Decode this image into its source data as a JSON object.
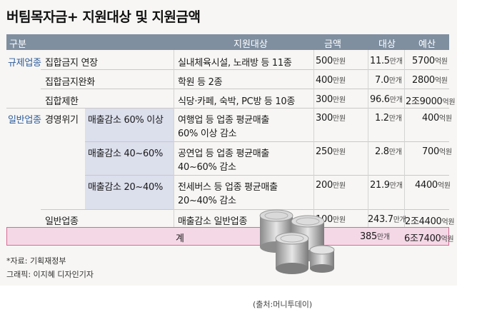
{
  "title": "버팀목자금+ 지원대상 및 지원금액",
  "header": {
    "category": "구분",
    "target": "지원대상",
    "amount": "금액",
    "count": "대상",
    "budget": "예산"
  },
  "groups": {
    "regulated": "규제업종",
    "general": "일반업종"
  },
  "rows": [
    {
      "sub": "집합금지 연장",
      "target": "실내체육시설, 노래방 등 11종",
      "amount": "500",
      "amount_unit": "만원",
      "count": "11.5",
      "count_unit": "만개",
      "budget": "5700",
      "budget_unit": "억원"
    },
    {
      "sub": "집합금지완화",
      "target": "학원 등 2종",
      "amount": "400",
      "amount_unit": "만원",
      "count": "7.0",
      "count_unit": "만개",
      "budget": "2800",
      "budget_unit": "억원"
    },
    {
      "sub": "집합제한",
      "target": "식당·카페, 숙박, PC방 등 10종",
      "amount": "300",
      "amount_unit": "만원",
      "count": "96.6",
      "count_unit": "만개",
      "budget": "2조9000",
      "budget_unit": "억원"
    },
    {
      "sub": "경영위기",
      "level": "매출감소 60% 이상",
      "target1": "여행업 등 업종 평균매출",
      "target2": "60% 이상 감소",
      "amount": "300",
      "amount_unit": "만원",
      "count": "1.2",
      "count_unit": "만개",
      "budget": "400",
      "budget_unit": "억원"
    },
    {
      "level": "매출감소 40~60%",
      "target1": "공연업 등 업종 평균매출",
      "target2": "40~60% 감소",
      "amount": "250",
      "amount_unit": "만원",
      "count": "2.8",
      "count_unit": "만개",
      "budget": "700",
      "budget_unit": "억원"
    },
    {
      "level": "매출감소 20~40%",
      "target1": "전세버스 등 업종 평균매출",
      "target2": "20~40% 감소",
      "amount": "200",
      "amount_unit": "만원",
      "count": "21.9",
      "count_unit": "만개",
      "budget": "4400",
      "budget_unit": "억원"
    },
    {
      "sub": "일반업종",
      "target": "매출감소 일반업종",
      "amount": "100",
      "amount_unit": "만원",
      "count": "243.7",
      "count_unit": "만개",
      "budget": "2조4400",
      "budget_unit": "억원"
    }
  ],
  "total": {
    "label": "계",
    "count": "385",
    "count_unit": "만개",
    "budget": "6조7400",
    "budget_unit": "억원"
  },
  "footer": {
    "source": "*자료: 기획재정부",
    "graphic": "그래픽: 이지혜 디자인기자"
  },
  "credit": "(출처:머니투데이)",
  "colors": {
    "header_bg": "#7f8fa0",
    "group_text": "#2f5d9c",
    "highlight": "#dcdfec",
    "total_bg": "#f4d8e6",
    "total_border": "#d76b95"
  }
}
